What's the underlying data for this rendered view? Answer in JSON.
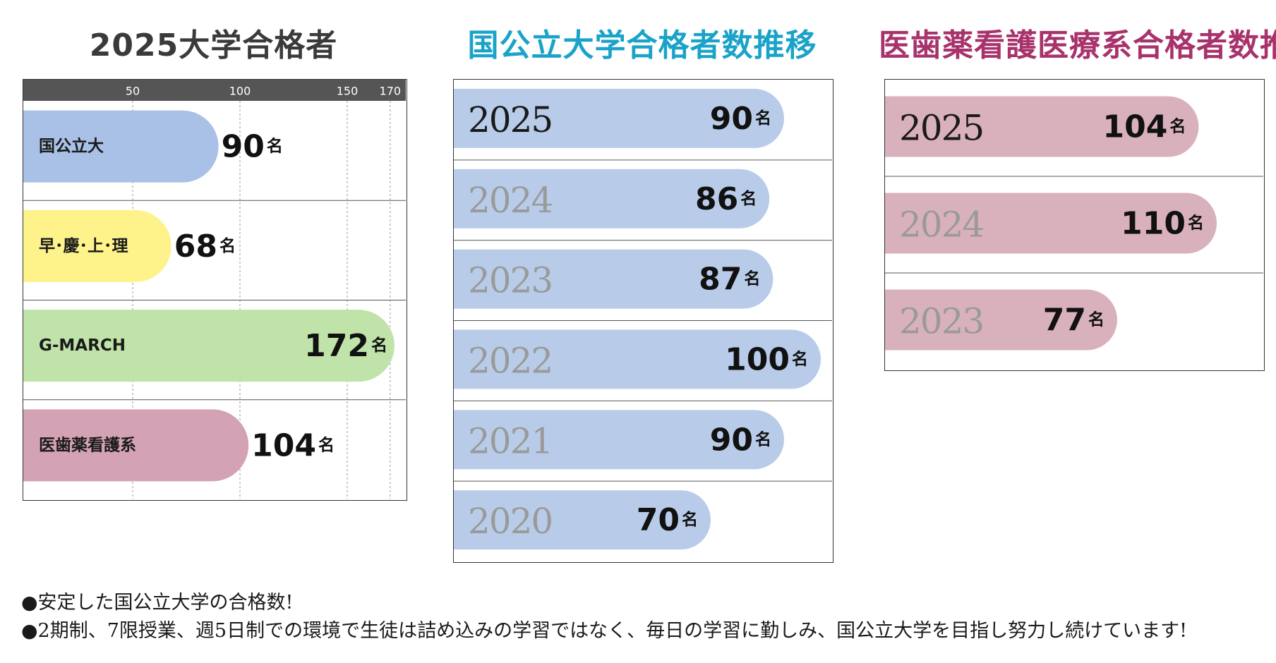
{
  "titles": {
    "summary": "2025大学合格者",
    "national_trend": "国公立大学合格者数推移",
    "medical_trend": "医歯薬看護医療系合格者数推移"
  },
  "unit": "名",
  "chart_data": [
    {
      "type": "bar",
      "orientation": "horizontal",
      "title": "2025大学合格者",
      "categories": [
        "国公立大",
        "早･慶･上･理",
        "G-MARCH",
        "医歯薬看護系"
      ],
      "values": [
        90,
        68,
        172,
        104
      ],
      "value_labels": [
        "90",
        "68",
        "172",
        "104"
      ],
      "unit": "名",
      "x_ticks": [
        50,
        100,
        150,
        170
      ],
      "xlim": [
        0,
        175
      ],
      "grid": true,
      "colors": [
        "#a9c1e6",
        "#fdf38a",
        "#bfe3a8",
        "#d3a2b4"
      ]
    },
    {
      "type": "bar",
      "orientation": "horizontal",
      "title": "国公立大学合格者数推移",
      "categories": [
        "2025",
        "2024",
        "2023",
        "2022",
        "2021",
        "2020"
      ],
      "values": [
        90,
        86,
        87,
        100,
        90,
        70
      ],
      "value_labels": [
        "90",
        "86",
        "87",
        "100",
        "90",
        "70"
      ],
      "unit": "名",
      "grid": false,
      "colors": [
        "#b8cce9"
      ]
    },
    {
      "type": "bar",
      "orientation": "horizontal",
      "title": "医歯薬看護医療系合格者数推移",
      "categories": [
        "2025",
        "2024",
        "2023"
      ],
      "values": [
        104,
        110,
        77
      ],
      "value_labels": [
        "104",
        "110",
        "77"
      ],
      "unit": "名",
      "grid": false,
      "colors": [
        "#d9b1bd"
      ]
    }
  ],
  "notes": [
    "●安定した国公立大学の合格数!",
    "●2期制、7限授業、週5日制での環境で生徒は詰め込みの学習ではなく、毎日の学習に勤しみ、国公立大学を目指し努力し続けています!"
  ]
}
